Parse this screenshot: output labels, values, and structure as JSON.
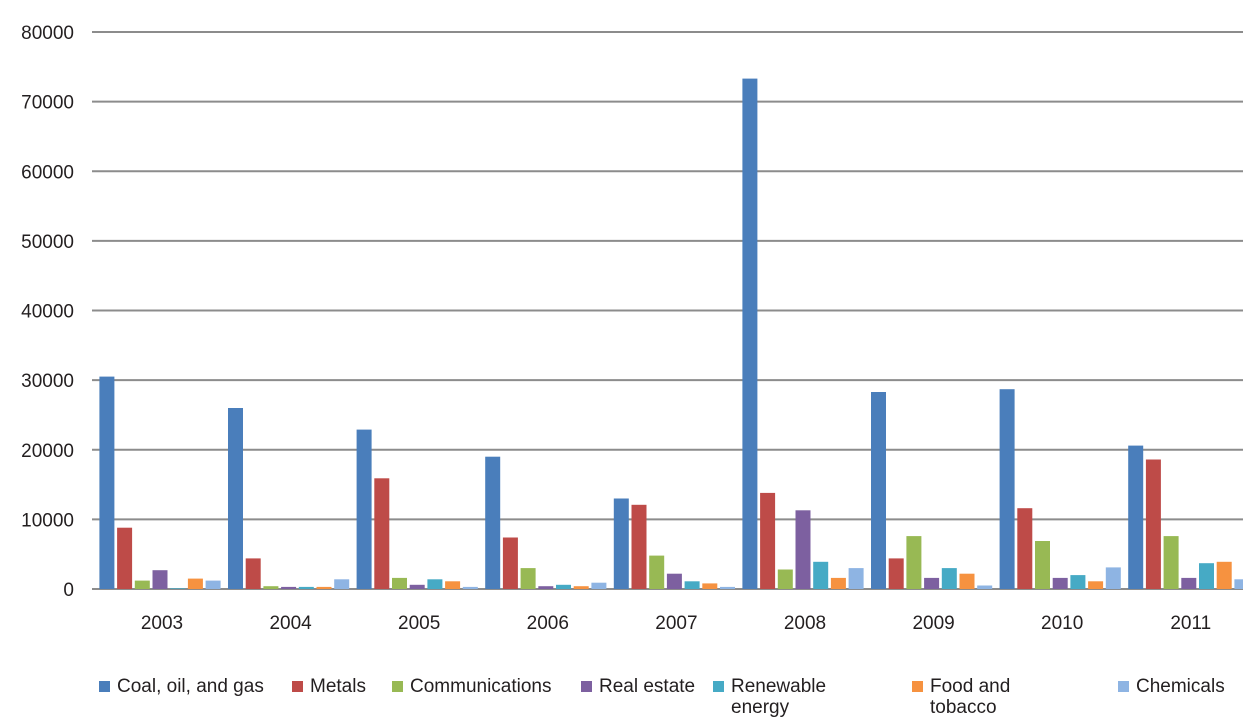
{
  "chart_data": {
    "type": "bar",
    "title": "",
    "xlabel": "",
    "ylabel": "",
    "ylim": [
      0,
      80000
    ],
    "yticks": [
      0,
      10000,
      20000,
      30000,
      40000,
      50000,
      60000,
      70000,
      80000
    ],
    "categories": [
      "2003",
      "2004",
      "2005",
      "2006",
      "2007",
      "2008",
      "2009",
      "2010",
      "2011"
    ],
    "grid": true,
    "legend_position": "bottom",
    "series": [
      {
        "name": "Coal, oil, and gas",
        "color": "#4a7ebb",
        "values": [
          30500,
          26000,
          22900,
          19000,
          13000,
          73300,
          28300,
          28700,
          20600
        ]
      },
      {
        "name": "Metals",
        "color": "#be4b48",
        "values": [
          8800,
          4400,
          15900,
          7400,
          12100,
          13800,
          4400,
          11600,
          18600
        ]
      },
      {
        "name": "Communications",
        "color": "#98b954",
        "values": [
          1200,
          400,
          1600,
          3000,
          4800,
          2800,
          7600,
          6900,
          7600
        ]
      },
      {
        "name": "Real estate",
        "color": "#7d60a0",
        "values": [
          2700,
          300,
          600,
          400,
          2200,
          11300,
          1600,
          1600,
          1600
        ]
      },
      {
        "name": "Renewable energy",
        "color": "#46aac5",
        "values": [
          100,
          300,
          1400,
          600,
          1100,
          3900,
          3000,
          2000,
          3700
        ]
      },
      {
        "name": "Food and tobacco",
        "color": "#f69240",
        "values": [
          1500,
          300,
          1100,
          400,
          800,
          1600,
          2200,
          1100,
          3900
        ]
      },
      {
        "name": "Chemicals",
        "color": "#8eb4e3",
        "values": [
          1200,
          1400,
          300,
          900,
          300,
          3000,
          500,
          3100,
          1400
        ]
      }
    ]
  },
  "legend": {
    "items": [
      {
        "line1": "Coal, oil, and gas",
        "line2": ""
      },
      {
        "line1": "Metals",
        "line2": ""
      },
      {
        "line1": "Communications",
        "line2": ""
      },
      {
        "line1": "Real estate",
        "line2": ""
      },
      {
        "line1": "Renewable",
        "line2": "energy"
      },
      {
        "line1": "Food and",
        "line2": "tobacco"
      },
      {
        "line1": "Chemicals",
        "line2": ""
      }
    ]
  }
}
